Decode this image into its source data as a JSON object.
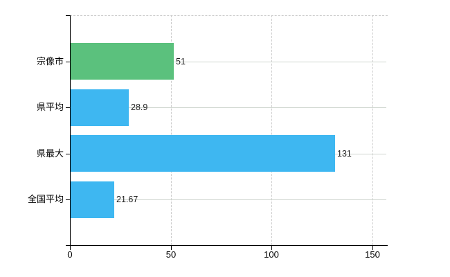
{
  "window": {
    "background": "#ffffff"
  },
  "chart_data": {
    "type": "bar",
    "orientation": "horizontal",
    "title": "",
    "categories": [
      "宗像市",
      "県平均",
      "県最大",
      "全国平均"
    ],
    "values": [
      51,
      28.9,
      131,
      21.67
    ],
    "value_labels": [
      "51",
      "28.9",
      "131",
      "21.67"
    ],
    "bar_colors": [
      "#5bc17d",
      "#3eb7f1",
      "#3eb7f1",
      "#3eb7f1"
    ],
    "highlight_color": "#5bc17d",
    "series_color": "#3eb7f1",
    "x_axis": {
      "min": 0,
      "max": 157.5,
      "ticks": [
        0,
        50,
        100,
        150
      ],
      "tick_labels": [
        "0",
        "50",
        "100",
        "150"
      ]
    },
    "grid": {
      "horizontal_lines": "solid",
      "horizontal_color": "#ced5ce",
      "vertical_lines": "dashed",
      "vertical_color": "#cccccc",
      "plot_top_border": "dashed"
    },
    "axis_color": "#000000",
    "label_color": "#000000",
    "legend_position": "none"
  }
}
